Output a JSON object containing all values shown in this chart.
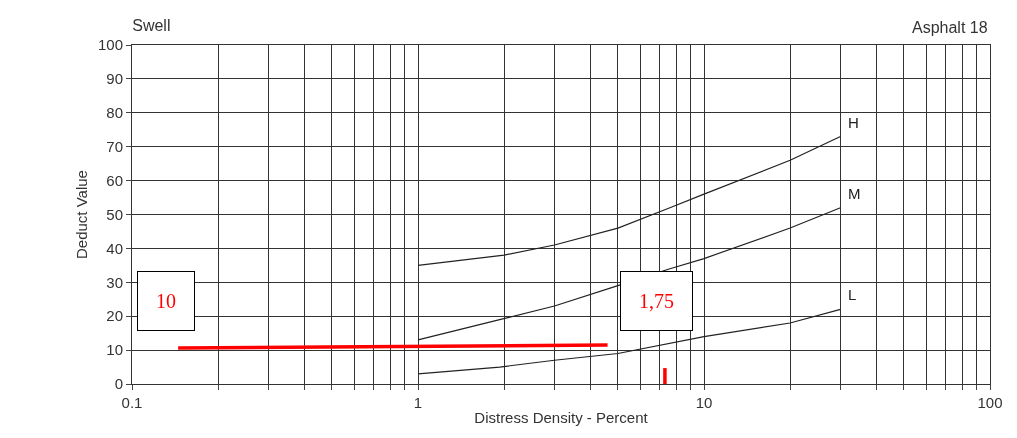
{
  "chart_data": {
    "type": "line",
    "title": "Swell",
    "xlabel": "Distress Density - Percent",
    "ylabel": "Deduct Value",
    "log": "x",
    "grid": true,
    "legend": false,
    "marker": "none",
    "line_style": "solid",
    "xlim": [
      0.1,
      100
    ],
    "ylim": [
      0,
      100
    ],
    "xticks": [
      0.1,
      {
        "value": 0.2,
        "label": null
      },
      {
        "value": 0.3,
        "label": null
      },
      {
        "value": 0.4,
        "label": null
      },
      {
        "value": 0.5,
        "label": null
      },
      {
        "value": 0.6,
        "label": null
      },
      {
        "value": 0.7,
        "label": null
      },
      {
        "value": 0.8,
        "label": null
      },
      {
        "value": 0.9,
        "label": null
      },
      1,
      {
        "value": 2,
        "label": null
      },
      {
        "value": 3,
        "label": null
      },
      {
        "value": 4,
        "label": null
      },
      {
        "value": 5,
        "label": null
      },
      {
        "value": 6,
        "label": null
      },
      {
        "value": 7,
        "label": null
      },
      {
        "value": 8,
        "label": null
      },
      {
        "value": 9,
        "label": null
      },
      10,
      {
        "value": 20,
        "label": null
      },
      {
        "value": 30,
        "label": null
      },
      {
        "value": 40,
        "label": null
      },
      {
        "value": 50,
        "label": null
      },
      {
        "value": 60,
        "label": null
      },
      {
        "value": 70,
        "label": null
      },
      {
        "value": 80,
        "label": null
      },
      {
        "value": 90,
        "label": null
      },
      100
    ],
    "yticks": [
      0,
      10,
      20,
      30,
      40,
      50,
      60,
      70,
      80,
      90,
      100
    ],
    "series": [
      {
        "name": "H",
        "color": "#222222",
        "x": [
          1,
          2,
          3,
          5,
          7.6,
          10,
          20,
          30
        ],
        "values": [
          35,
          38,
          41,
          46,
          52,
          56,
          66,
          73
        ]
      },
      {
        "name": "M",
        "color": "#222222",
        "x": [
          1,
          1.93,
          3,
          5,
          7.6,
          10,
          20,
          30
        ],
        "values": [
          13,
          19,
          23,
          29,
          34,
          37,
          46,
          52
        ]
      },
      {
        "name": "L",
        "color": "#222222",
        "x": [
          1,
          1.93,
          3,
          5,
          10,
          20,
          30
        ],
        "values": [
          3,
          5,
          7,
          9,
          14,
          18,
          22
        ]
      },
      {
        "color": "#ff0000",
        "x": [
          0.145,
          4.6,
          null,
          7.3,
          7.3
        ],
        "values": [
          10.6,
          11.5,
          null,
          4.7,
          0
        ]
      }
    ],
    "annotations": [
      "Asphalt 18",
      "10",
      "1,75"
    ]
  }
}
